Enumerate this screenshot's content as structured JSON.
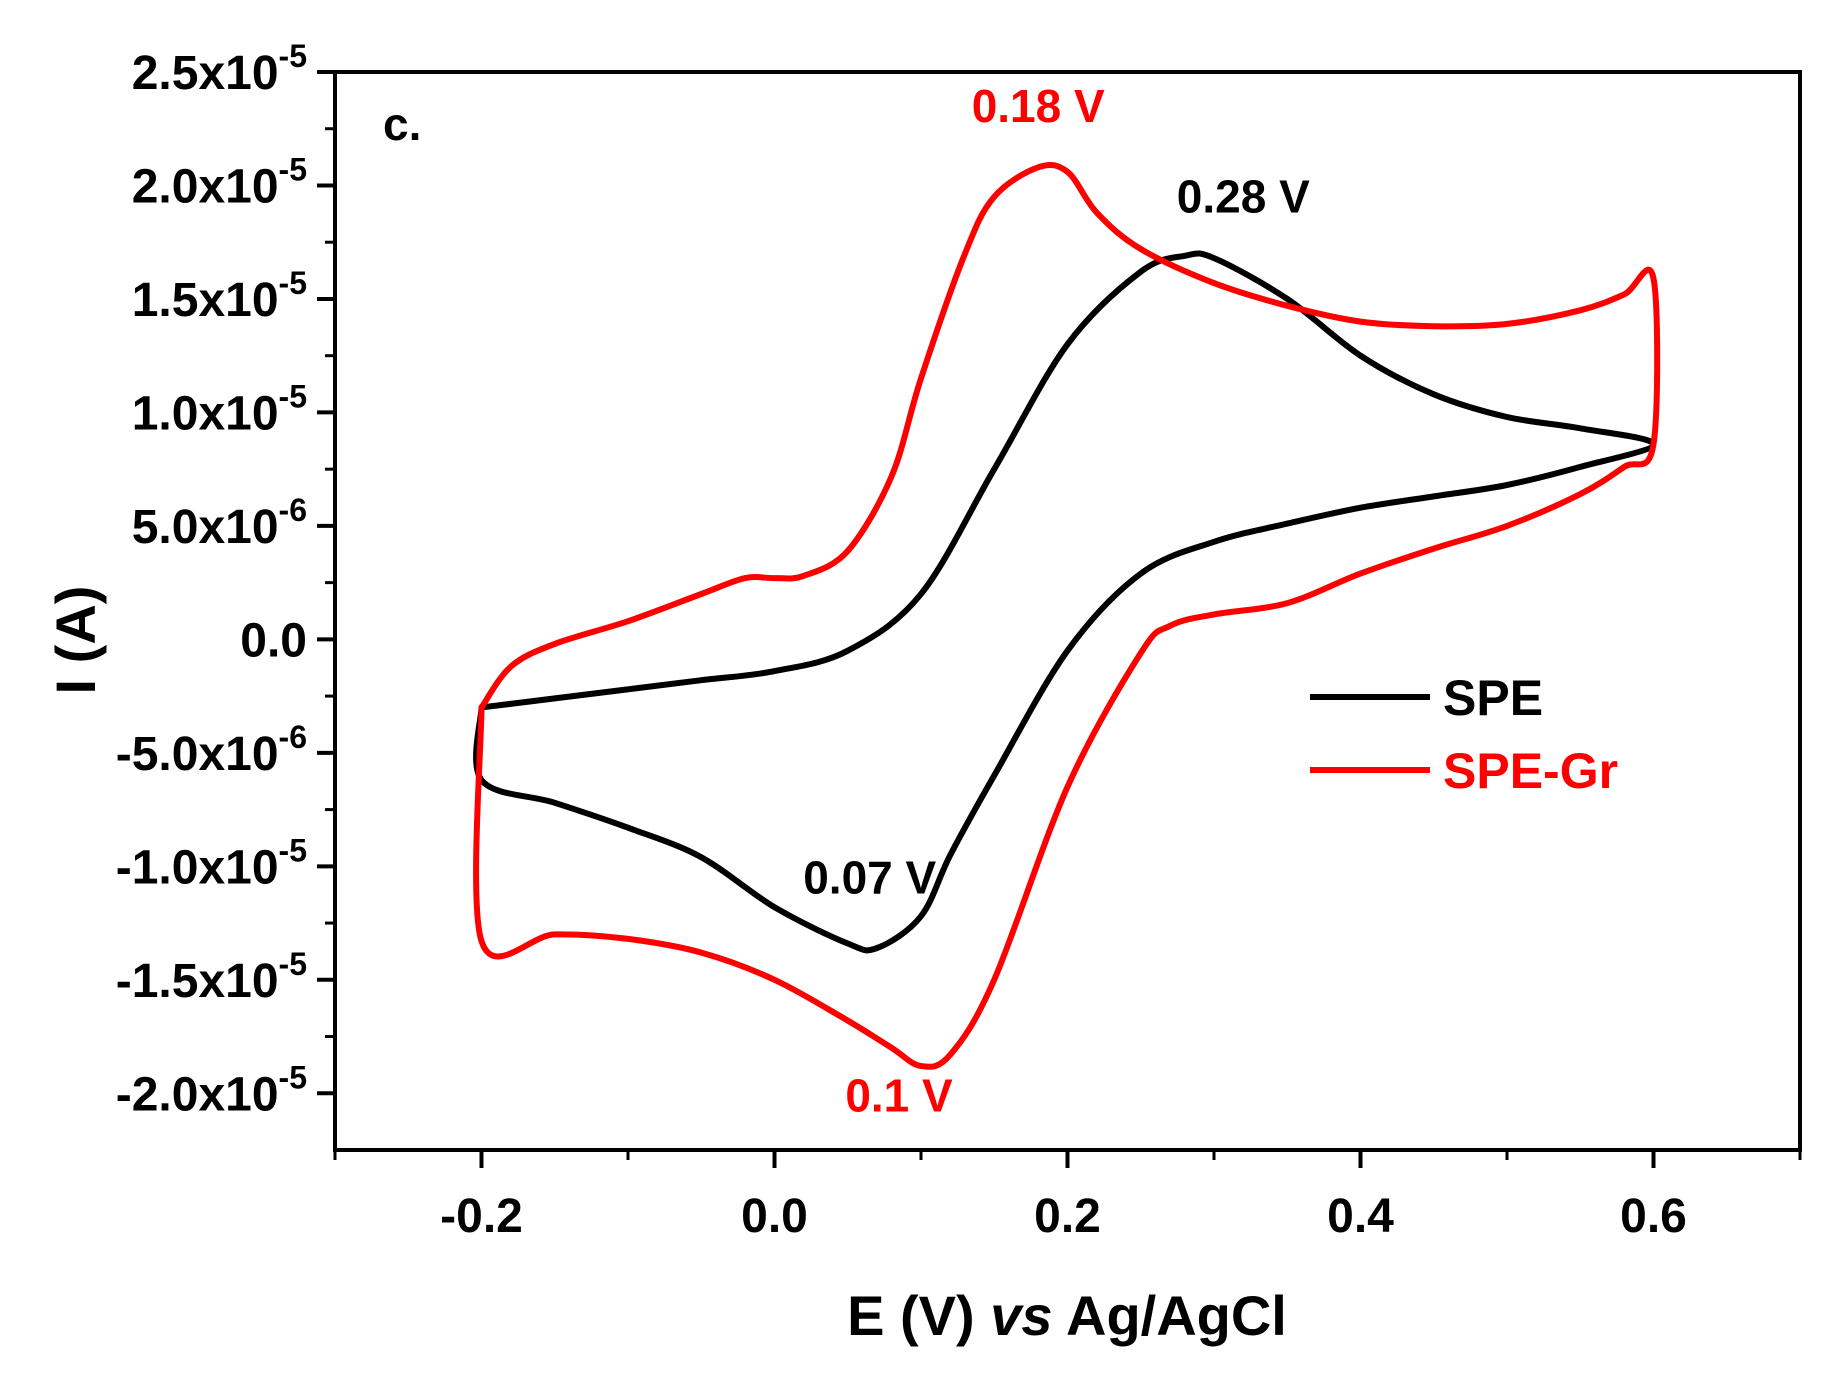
{
  "chart_data": {
    "type": "line",
    "panel_label": "c.",
    "xlabel": "E (V) vs Ag/AgCl",
    "xlabel_parts": [
      "E (V) ",
      "vs",
      " Ag/AgCl"
    ],
    "ylabel": "I (A)",
    "xlim": [
      -0.3,
      0.7
    ],
    "ylim": [
      -2.25e-05,
      2.5e-05
    ],
    "x_ticks": [
      -0.2,
      0.0,
      0.2,
      0.4,
      0.6
    ],
    "x_tick_labels": [
      "-0.2",
      "0.0",
      "0.2",
      "0.4",
      "0.6"
    ],
    "y_ticks": [
      2.5e-05,
      2e-05,
      1.5e-05,
      1e-05,
      5e-06,
      0.0,
      -5e-06,
      -1e-05,
      -1.5e-05,
      -2e-05
    ],
    "y_tick_labels": [
      {
        "mantissa": "2.5x10",
        "exp": "-5"
      },
      {
        "mantissa": "2.0x10",
        "exp": "-5"
      },
      {
        "mantissa": "1.5x10",
        "exp": "-5"
      },
      {
        "mantissa": "1.0x10",
        "exp": "-5"
      },
      {
        "mantissa": "5.0x10",
        "exp": "-6"
      },
      {
        "mantissa": "0.0",
        "exp": ""
      },
      {
        "mantissa": "-5.0x10",
        "exp": "-6"
      },
      {
        "mantissa": "-1.0x10",
        "exp": "-5"
      },
      {
        "mantissa": "-1.5x10",
        "exp": "-5"
      },
      {
        "mantissa": "-2.0x10",
        "exp": "-5"
      }
    ],
    "series": [
      {
        "name": "SPE",
        "color": "#000000",
        "x": [
          -0.2,
          -0.15,
          -0.1,
          -0.05,
          0.0,
          0.05,
          0.1,
          0.15,
          0.2,
          0.25,
          0.28,
          0.3,
          0.35,
          0.4,
          0.45,
          0.5,
          0.55,
          0.6,
          0.55,
          0.5,
          0.45,
          0.4,
          0.35,
          0.3,
          0.25,
          0.2,
          0.15,
          0.12,
          0.1,
          0.07,
          0.05,
          0.0,
          -0.05,
          -0.1,
          -0.15,
          -0.2,
          -0.2
        ],
        "y": [
          -3e-06,
          -2.6e-06,
          -2.2e-06,
          -1.8e-06,
          -1.4e-06,
          -5e-07,
          2e-06,
          7.5e-06,
          1.3e-05,
          1.62e-05,
          1.69e-05,
          1.68e-05,
          1.5e-05,
          1.25e-05,
          1.08e-05,
          9.8e-06,
          9.3e-06,
          8.6e-06,
          7.6e-06,
          6.8e-06,
          6.3e-06,
          5.8e-06,
          5.1e-06,
          4.3e-06,
          2.9e-06,
          -5e-07,
          -6e-06,
          -9.5e-06,
          -1.22e-05,
          -1.36e-05,
          -1.34e-05,
          -1.18e-05,
          -9.6e-06,
          -8.3e-06,
          -7.2e-06,
          -6.2e-06,
          -3e-06
        ]
      },
      {
        "name": "SPE-Gr",
        "color": "#ff0000",
        "x": [
          -0.2,
          -0.18,
          -0.15,
          -0.1,
          -0.05,
          -0.02,
          0.0,
          0.02,
          0.05,
          0.08,
          0.1,
          0.13,
          0.15,
          0.18,
          0.2,
          0.22,
          0.25,
          0.3,
          0.35,
          0.4,
          0.45,
          0.5,
          0.55,
          0.58,
          0.6,
          0.6,
          0.58,
          0.55,
          0.5,
          0.45,
          0.4,
          0.35,
          0.3,
          0.27,
          0.25,
          0.2,
          0.15,
          0.12,
          0.1,
          0.08,
          0.05,
          0.0,
          -0.05,
          -0.1,
          -0.15,
          -0.2,
          -0.2
        ],
        "y": [
          -3e-06,
          -1.2e-06,
          -2e-07,
          8e-07,
          2e-06,
          2.7e-06,
          2.7e-06,
          2.8e-06,
          3.9e-06,
          7.2e-06,
          1.15e-05,
          1.7e-05,
          1.95e-05,
          2.08e-05,
          2.06e-05,
          1.88e-05,
          1.72e-05,
          1.57e-05,
          1.47e-05,
          1.4e-05,
          1.38e-05,
          1.39e-05,
          1.45e-05,
          1.52e-05,
          1.59e-05,
          8.6e-06,
          7.6e-06,
          6.4e-06,
          5e-06,
          4e-06,
          2.9e-06,
          1.6e-06,
          1.1e-06,
          6e-07,
          -6e-07,
          -6.5e-06,
          -1.5e-05,
          -1.83e-05,
          -1.88e-05,
          -1.8e-05,
          -1.68e-05,
          -1.5e-05,
          -1.38e-05,
          -1.32e-05,
          -1.3e-05,
          -1.33e-05,
          -3e-06
        ]
      }
    ],
    "annotations": [
      {
        "text": "0.18 V",
        "x": 0.18,
        "y": 2.28e-05,
        "color": "#ff0000"
      },
      {
        "text": "0.28 V",
        "x": 0.32,
        "y": 1.88e-05,
        "color": "#000000"
      },
      {
        "text": "0.07 V",
        "x": 0.065,
        "y": -1.12e-05,
        "color": "#000000"
      },
      {
        "text": "0.1 V",
        "x": 0.085,
        "y": -2.08e-05,
        "color": "#ff0000"
      }
    ],
    "legend": {
      "placement": "right-middle",
      "entries": [
        {
          "label": "SPE",
          "color": "#000000"
        },
        {
          "label": "SPE-Gr",
          "color": "#ff0000"
        }
      ]
    },
    "grid": false
  }
}
